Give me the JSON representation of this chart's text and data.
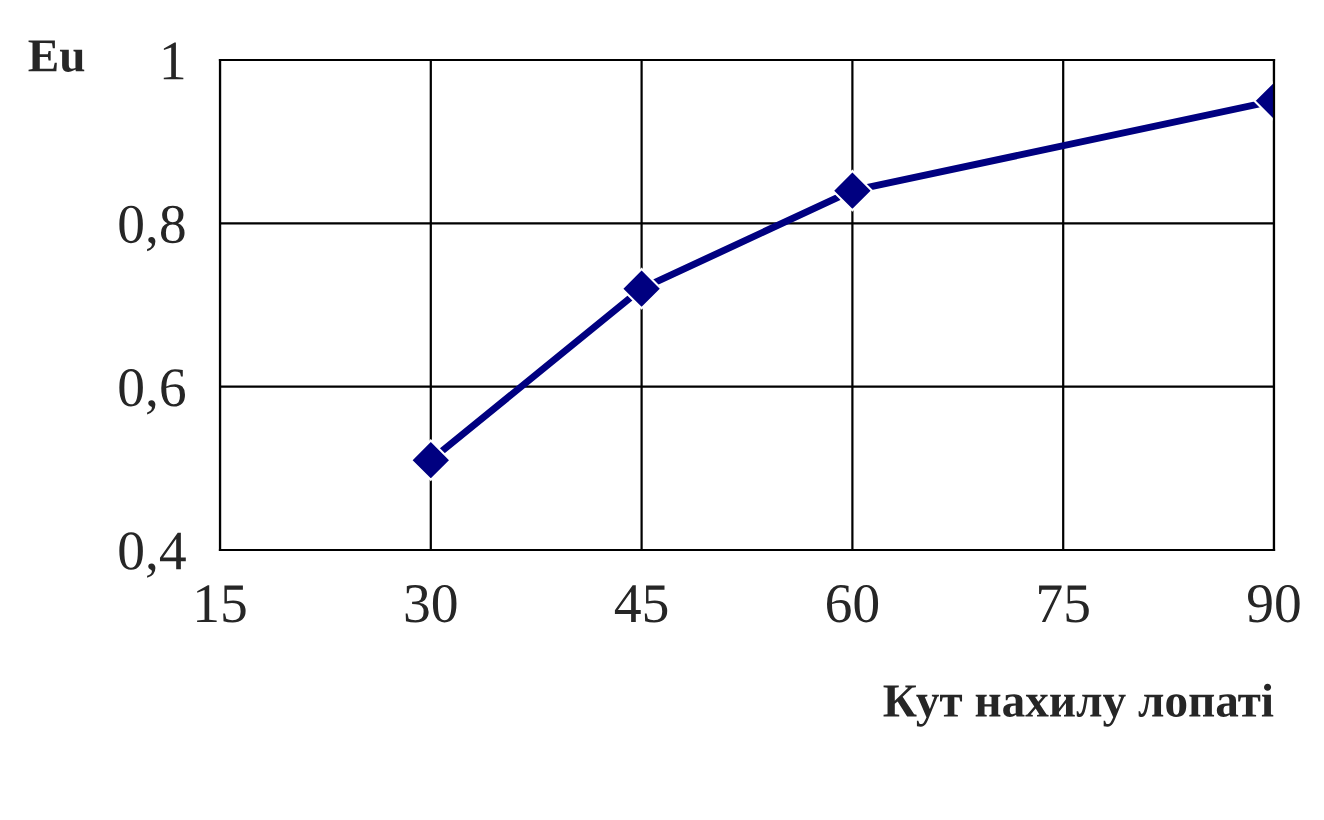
{
  "chart_data": {
    "type": "line",
    "xlabel": "Кут нахилу лопаті",
    "ylabel": "Eu",
    "x": [
      30,
      45,
      60,
      90
    ],
    "series": [
      {
        "color": "#000080",
        "values": [
          0.51,
          0.72,
          0.84,
          0.95
        ]
      }
    ],
    "xlim": [
      15,
      90
    ],
    "xticks": [
      15,
      30,
      45,
      60,
      75,
      90
    ],
    "ylim": [
      0.4,
      1
    ],
    "yticks": [
      {
        "value": 0.4,
        "label": "0,4"
      },
      {
        "value": 0.6,
        "label": "0,6"
      },
      {
        "value": 0.8,
        "label": "0,8"
      },
      1
    ],
    "grid": true,
    "marker": "diamond",
    "line_style": "solid",
    "legend": false
  }
}
